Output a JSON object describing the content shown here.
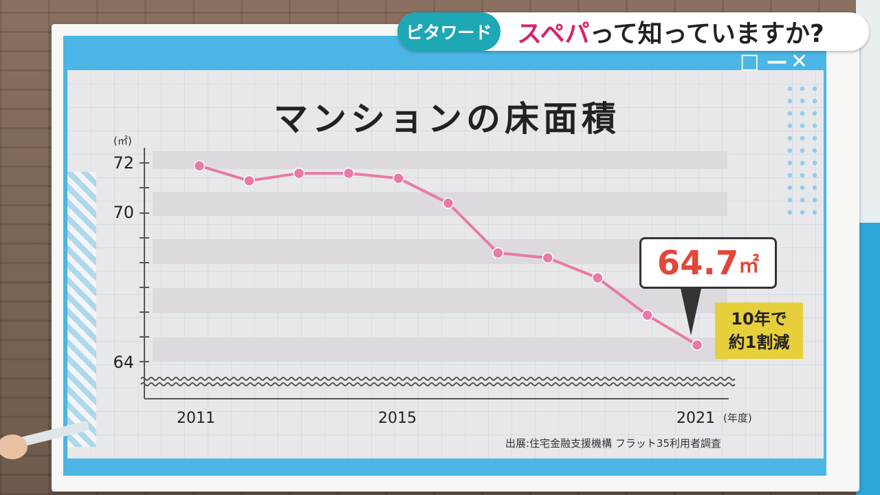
{
  "header": {
    "tag": "ピタワード",
    "title_highlight": "スペパ",
    "title_rest": "って知っていますか?"
  },
  "window_controls": [
    "□",
    "—",
    "✕"
  ],
  "callout": {
    "value": "64.7",
    "unit": "㎡"
  },
  "note": {
    "line1": "10年で",
    "line2": "約1割減"
  },
  "source": "出展:住宅金融支援機構 フラット35利用者調査",
  "colors": {
    "line": "#e87aa6",
    "accent": "#d6236e",
    "callout": "#e2473a",
    "note_bg": "#e7cf3c",
    "panel": "#4bb6e6"
  },
  "chart_data": {
    "type": "line",
    "title": "マンションの床面積",
    "ylabel": "(㎡)",
    "xlabel": "(年度)",
    "x": [
      2011,
      2012,
      2013,
      2014,
      2015,
      2016,
      2017,
      2018,
      2019,
      2020,
      2021
    ],
    "values": [
      71.9,
      71.3,
      71.6,
      71.6,
      71.4,
      70.4,
      68.4,
      68.2,
      67.4,
      65.9,
      64.7
    ],
    "x_tick_labels": [
      "2011",
      "2015",
      "2021"
    ],
    "y_tick_labels": [
      "72",
      "70",
      "64"
    ],
    "y_axis_break": true,
    "grid": "horizontal bands"
  }
}
